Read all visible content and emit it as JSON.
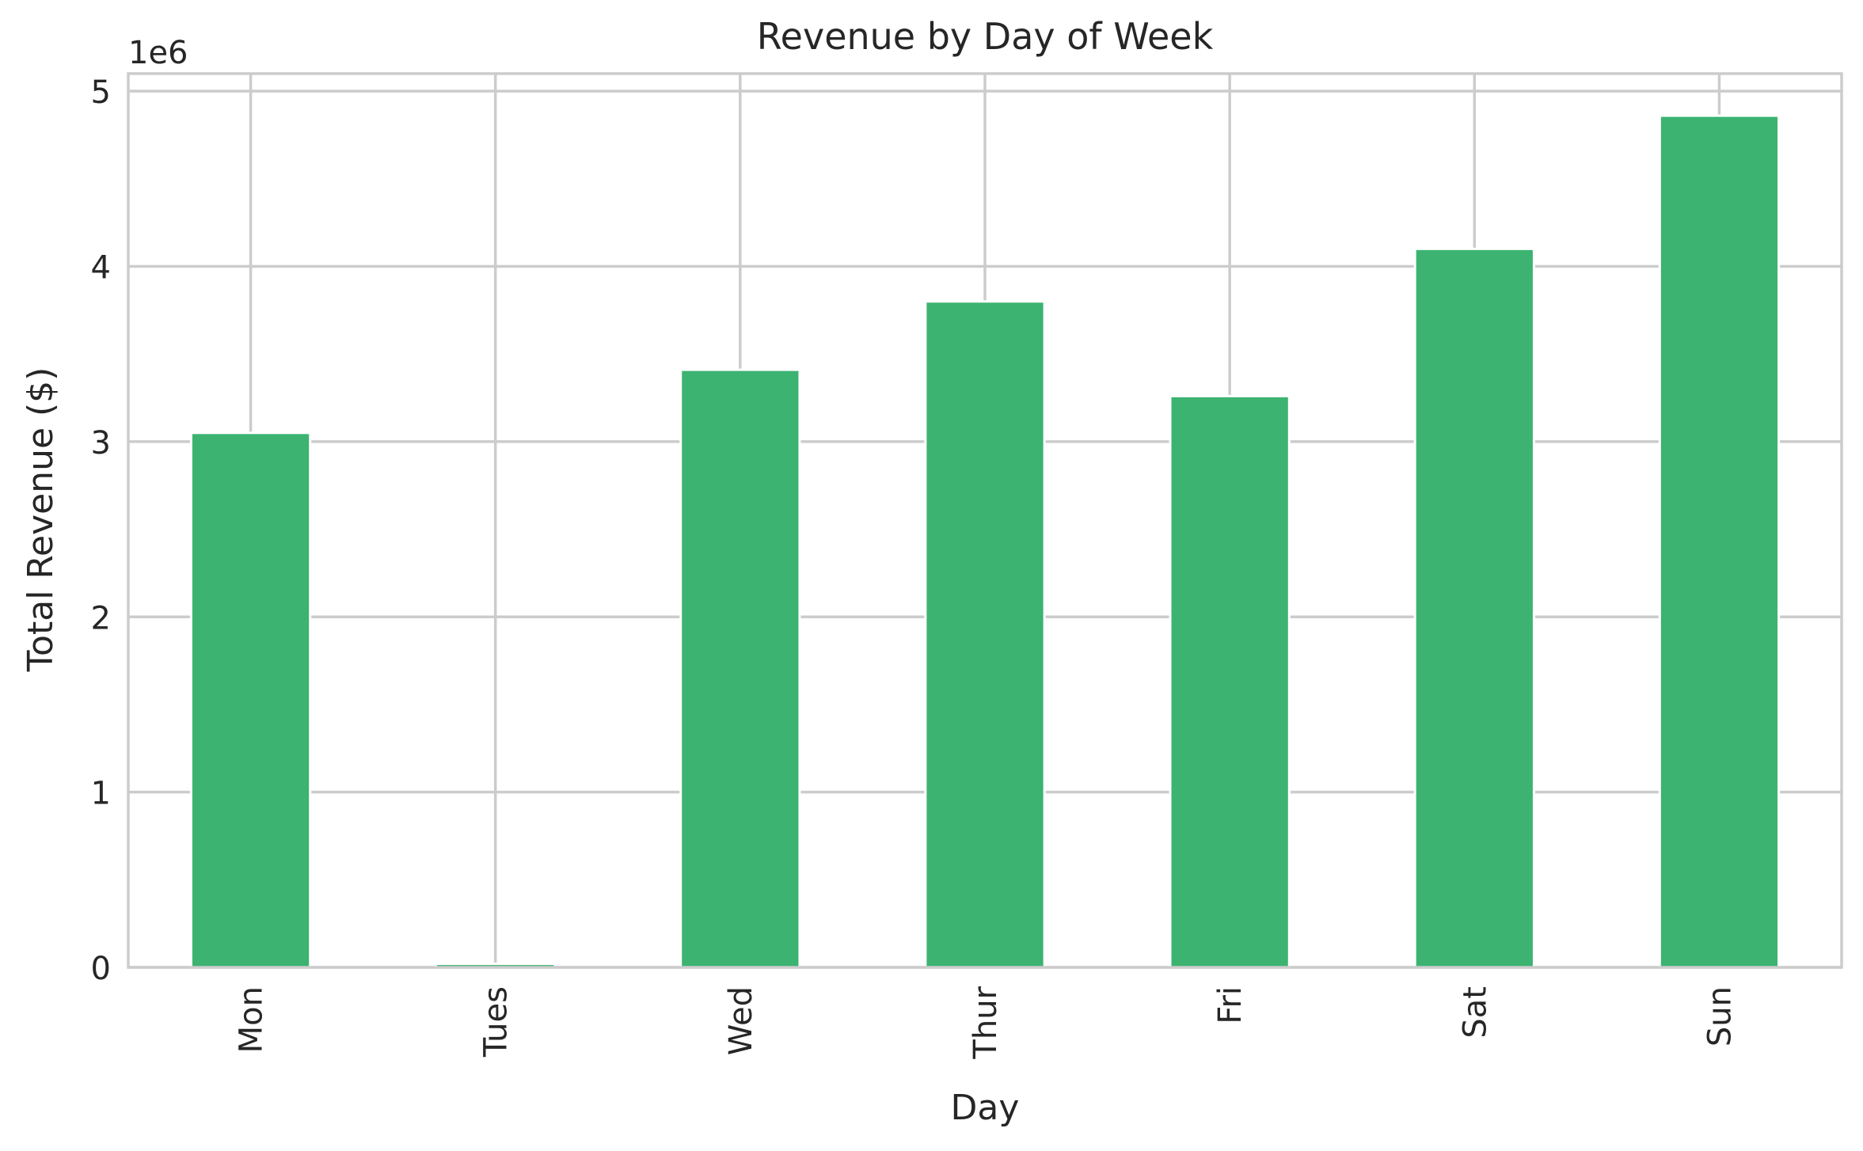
{
  "chart_data": {
    "type": "bar",
    "title": "Revenue by Day of Week",
    "xlabel": "Day",
    "ylabel": "Total Revenue ($)",
    "y_offset_label": "1e6",
    "categories": [
      "Mon",
      "Tues",
      "Wed",
      "Thur",
      "Fri",
      "Sat",
      "Sun"
    ],
    "values": [
      3050000,
      20000,
      3410000,
      3800000,
      3260000,
      4100000,
      4860000
    ],
    "ylim": [
      0,
      5100000
    ],
    "yticks": [
      0,
      1000000,
      2000000,
      3000000,
      4000000,
      5000000
    ],
    "ytick_labels": [
      "0",
      "1",
      "2",
      "3",
      "4",
      "5"
    ],
    "grid": true,
    "bar_color": "#3cb371",
    "grid_color": "#cccccc"
  }
}
